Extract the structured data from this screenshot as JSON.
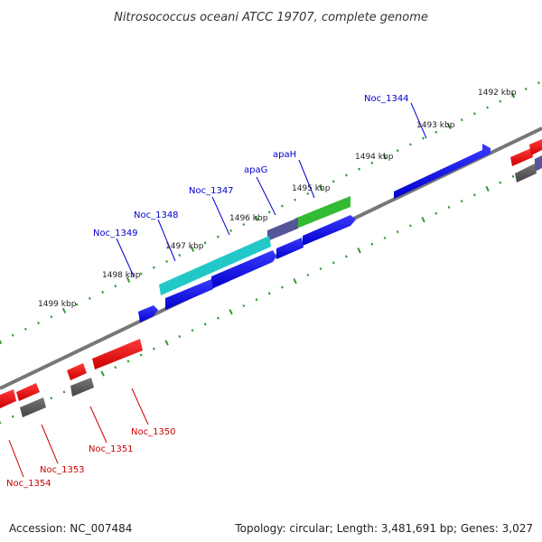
{
  "title": "Nitrosococcus oceani ATCC 19707, complete genome",
  "accession_text": "Accession: NC_007484",
  "topology_text": "Topology: circular; Length: 3,481,691 bp; Genes: 3,027",
  "colors": {
    "forward_gene": "#0000ee",
    "reverse_gene": "#ee0000",
    "rna_gene": "#666666",
    "highlight_cyan": "#22c8c8",
    "highlight_purple": "#555599",
    "highlight_green": "#33bb33",
    "backbone": "#777777",
    "tick": "#339933",
    "forward_label": "#0000cc",
    "reverse_label": "#cc0000"
  },
  "tick_labels": [
    "1492 kbp",
    "1493 kbp",
    "1494 kbp",
    "1495 kbp",
    "1496 kbp",
    "1497 kbp",
    "1498 kbp",
    "1499 kbp"
  ],
  "forward_labels": [
    "Noc_1344",
    "apaH",
    "apaG",
    "Noc_1347",
    "Noc_1348",
    "Noc_1349"
  ],
  "reverse_labels": [
    "Noc_1350",
    "Noc_1351",
    "Noc_1353",
    "Noc_1354"
  ]
}
